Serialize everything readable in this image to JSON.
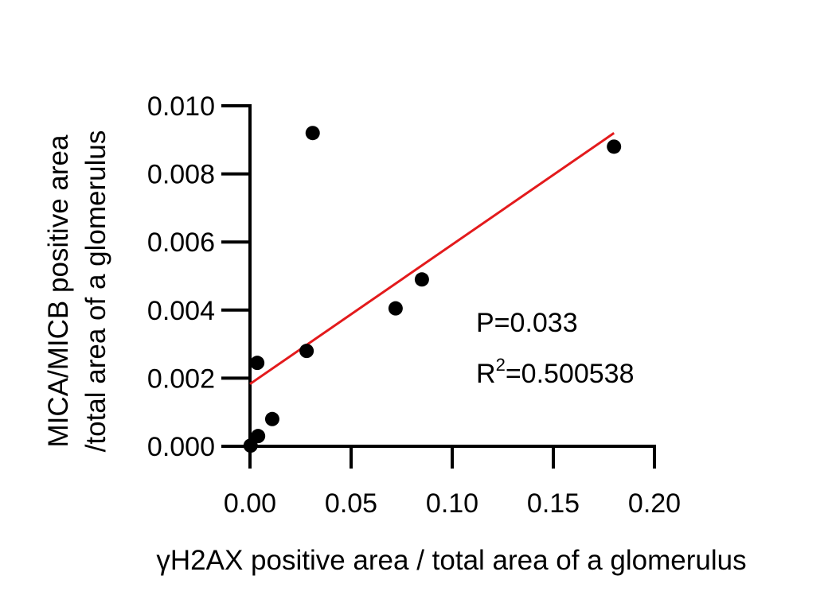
{
  "chart_data": {
    "type": "scatter",
    "xlabel": "γH2AX positive area / total area of a glomerulus",
    "ylabel_line1": "MICA/MICB positive area",
    "ylabel_line2": "/total area of a glomerulus",
    "xlim": [
      0,
      0.2
    ],
    "ylim": [
      0,
      0.01
    ],
    "x_ticks": [
      0,
      0.05,
      0.1,
      0.15,
      0.2
    ],
    "x_tick_labels": [
      "0.00",
      "0.05",
      "0.10",
      "0.15",
      "0.20"
    ],
    "y_ticks": [
      0,
      0.002,
      0.004,
      0.006,
      0.008,
      0.01
    ],
    "y_tick_labels": [
      "0.000",
      "0.002",
      "0.004",
      "0.006",
      "0.008",
      "0.010"
    ],
    "points": [
      {
        "x": 0.0003,
        "y": 2e-05
      },
      {
        "x": 0.004,
        "y": 0.0003
      },
      {
        "x": 0.011,
        "y": 0.0008
      },
      {
        "x": 0.0036,
        "y": 0.00245
      },
      {
        "x": 0.028,
        "y": 0.0028
      },
      {
        "x": 0.031,
        "y": 0.0092
      },
      {
        "x": 0.072,
        "y": 0.00405
      },
      {
        "x": 0.085,
        "y": 0.0049
      },
      {
        "x": 0.18,
        "y": 0.0088
      }
    ],
    "fit_line": {
      "x": [
        0,
        0.18
      ],
      "y": [
        0.00183,
        0.0092
      ],
      "color": "#e31a1c"
    },
    "point_color": "#000000",
    "grid": false,
    "annotations": {
      "p_value": "P=0.033",
      "r2_prefix": "R",
      "r2_sup": "2",
      "r2_value": "=0.500538"
    }
  }
}
